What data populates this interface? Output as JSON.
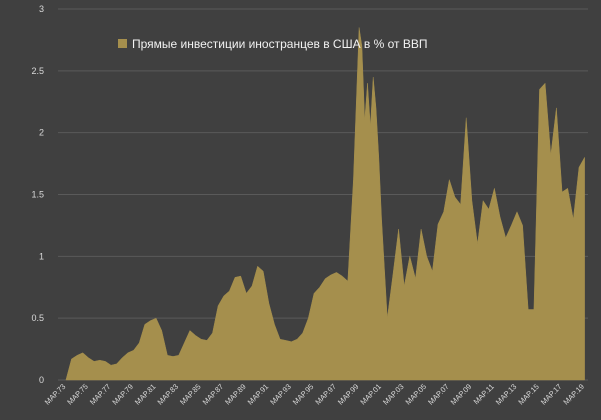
{
  "chart_data": {
    "type": "area",
    "legend": {
      "label": "Прямые инвестиции иностранцев в США в %  от ВВП",
      "position": "top-left",
      "color": "#a58f4d"
    },
    "series": [
      {
        "name": "Прямые инвестиции иностранцев в США в %  от ВВП",
        "color": "#a58f4d",
        "x": [
          1973,
          1973.5,
          1974,
          1974.5,
          1975,
          1975.5,
          1976,
          1976.5,
          1977,
          1977.5,
          1978,
          1978.5,
          1979,
          1979.5,
          1980,
          1980.5,
          1981,
          1981.5,
          1982,
          1982.5,
          1983,
          1983.5,
          1984,
          1984.5,
          1985,
          1985.5,
          1986,
          1986.5,
          1987,
          1987.5,
          1988,
          1988.5,
          1989,
          1989.5,
          1990,
          1990.5,
          1991,
          1991.5,
          1992,
          1992.5,
          1993,
          1993.5,
          1994,
          1994.5,
          1995,
          1995.5,
          1996,
          1996.5,
          1997,
          1997.5,
          1998,
          1998.5,
          1999,
          1999.25,
          1999.5,
          1999.75,
          2000,
          2000.25,
          2000.5,
          2000.75,
          2001,
          2001.5,
          2002,
          2002.5,
          2003,
          2003.5,
          2004,
          2004.5,
          2005,
          2005.5,
          2006,
          2006.5,
          2007,
          2007.5,
          2008,
          2008.5,
          2009,
          2009.5,
          2010,
          2010.5,
          2011,
          2011.5,
          2012,
          2012.5,
          2013,
          2013.5,
          2014,
          2014.5,
          2015,
          2015.5,
          2016,
          2016.5,
          2017,
          2017.5,
          2018,
          2018.5,
          2019
        ],
        "values": [
          0,
          0.17,
          0.2,
          0.22,
          0.18,
          0.15,
          0.16,
          0.15,
          0.12,
          0.13,
          0.18,
          0.22,
          0.24,
          0.3,
          0.45,
          0.48,
          0.5,
          0.4,
          0.2,
          0.19,
          0.2,
          0.3,
          0.4,
          0.36,
          0.33,
          0.32,
          0.38,
          0.6,
          0.68,
          0.72,
          0.83,
          0.84,
          0.7,
          0.76,
          0.92,
          0.88,
          0.62,
          0.45,
          0.33,
          0.32,
          0.31,
          0.33,
          0.38,
          0.5,
          0.7,
          0.75,
          0.82,
          0.85,
          0.87,
          0.84,
          0.8,
          1.62,
          2.85,
          2.7,
          2.1,
          2.4,
          2.05,
          2.45,
          2.2,
          1.8,
          1.3,
          0.5,
          0.85,
          1.22,
          0.76,
          1.0,
          0.82,
          1.22,
          1.0,
          0.88,
          1.26,
          1.36,
          1.62,
          1.48,
          1.42,
          2.12,
          1.45,
          1.1,
          1.45,
          1.38,
          1.55,
          1.32,
          1.15,
          1.25,
          1.36,
          1.25,
          0.57,
          0.57,
          2.35,
          2.4,
          1.82,
          2.2,
          1.52,
          1.55,
          1.3,
          1.72,
          1.8
        ]
      }
    ],
    "ylim": [
      0,
      3
    ],
    "xlim": [
      1972.3,
      2019.3
    ],
    "yticks": [
      "0",
      "0.5",
      "1",
      "1.5",
      "2",
      "2.5",
      "3"
    ],
    "xticks": [
      "MAP.73",
      "MAP.75",
      "MAP.77",
      "MAP.79",
      "MAP.81",
      "MAP.83",
      "MAP.85",
      "MAP.87",
      "MAP.89",
      "MAP.91",
      "MAP.93",
      "MAP.95",
      "MAP.97",
      "MAP.99",
      "MAP.01",
      "MAP.03",
      "MAP.05",
      "MAP.07",
      "MAP.09",
      "MAP.11",
      "MAP.13",
      "MAP.15",
      "MAP.17",
      "MAP.19"
    ],
    "xtick_years": [
      1973,
      1975,
      1977,
      1979,
      1981,
      1983,
      1985,
      1987,
      1989,
      1991,
      1993,
      1995,
      1997,
      1999,
      2001,
      2003,
      2005,
      2007,
      2009,
      2011,
      2013,
      2015,
      2017,
      2019
    ],
    "grid": "horizontal",
    "title": "",
    "xlabel": "",
    "ylabel": ""
  }
}
